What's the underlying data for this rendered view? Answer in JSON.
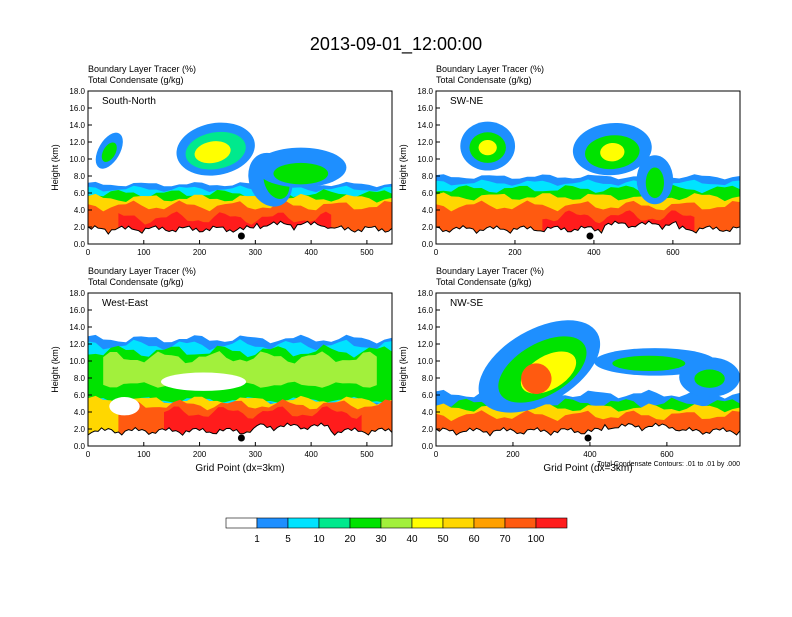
{
  "title": "2013-09-01_12:00:00",
  "colors": {
    "scale": [
      "#ffffff",
      "#1e8fff",
      "#00e3ff",
      "#00e98d",
      "#00e300",
      "#a2f03c",
      "#ffff00",
      "#ffd700",
      "#ffa000",
      "#ff5a10",
      "#ff1c1c"
    ]
  },
  "colorbar": {
    "labels": [
      "1",
      "5",
      "10",
      "20",
      "30",
      "40",
      "50",
      "60",
      "70",
      "100"
    ]
  },
  "chart_data": [
    {
      "type": "heatmap",
      "panel_title": "South-North",
      "field_labels": [
        "Boundary Layer Tracer   (%)",
        "Total Condensate   (g/kg)"
      ],
      "xlabel": "",
      "ylabel": "Height (km)",
      "xlim": [
        0,
        545
      ],
      "ylim": [
        0,
        18
      ],
      "xticks": [
        0,
        100,
        200,
        300,
        400,
        500
      ],
      "yticks": [
        "0.0",
        "2.0",
        "4.0",
        "6.0",
        "8.0",
        "10.0",
        "12.0",
        "14.0",
        "16.0",
        "18.0"
      ],
      "marker_x": 275
    },
    {
      "type": "heatmap",
      "panel_title": "SW-NE",
      "field_labels": [
        "Boundary Layer Tracer   (%)",
        "Total Condensate   (g/kg)"
      ],
      "xlabel": "",
      "ylabel": "Height (km)",
      "xlim": [
        0,
        770
      ],
      "ylim": [
        0,
        18
      ],
      "xticks": [
        0,
        200,
        400,
        600
      ],
      "yticks": [
        "0.0",
        "2.0",
        "4.0",
        "6.0",
        "8.0",
        "10.0",
        "12.0",
        "14.0",
        "16.0",
        "18.0"
      ],
      "marker_x": 390
    },
    {
      "type": "heatmap",
      "panel_title": "West-East",
      "field_labels": [
        "Boundary Layer Tracer   (%)",
        "Total Condensate   (g/kg)"
      ],
      "xlabel": "Grid Point (dx=3km)",
      "ylabel": "Height (km)",
      "xlim": [
        0,
        545
      ],
      "ylim": [
        0,
        18
      ],
      "xticks": [
        0,
        100,
        200,
        300,
        400,
        500
      ],
      "yticks": [
        "0.0",
        "2.0",
        "4.0",
        "6.0",
        "8.0",
        "10.0",
        "12.0",
        "14.0",
        "16.0",
        "18.0"
      ],
      "marker_x": 275
    },
    {
      "type": "heatmap",
      "panel_title": "NW-SE",
      "field_labels": [
        "Boundary Layer Tracer   (%)",
        "Total Condensate   (g/kg)"
      ],
      "xlabel": "Grid Point (dx=3km)",
      "ylabel": "Height (km)",
      "xlim": [
        0,
        790
      ],
      "ylim": [
        0,
        18
      ],
      "xticks": [
        0,
        200,
        400,
        600
      ],
      "yticks": [
        "0.0",
        "2.0",
        "4.0",
        "6.0",
        "8.0",
        "10.0",
        "12.0",
        "14.0",
        "16.0",
        "18.0"
      ],
      "marker_x": 395,
      "contour_note": "Total Condensate Contours: .01 to .01 by .000"
    }
  ]
}
